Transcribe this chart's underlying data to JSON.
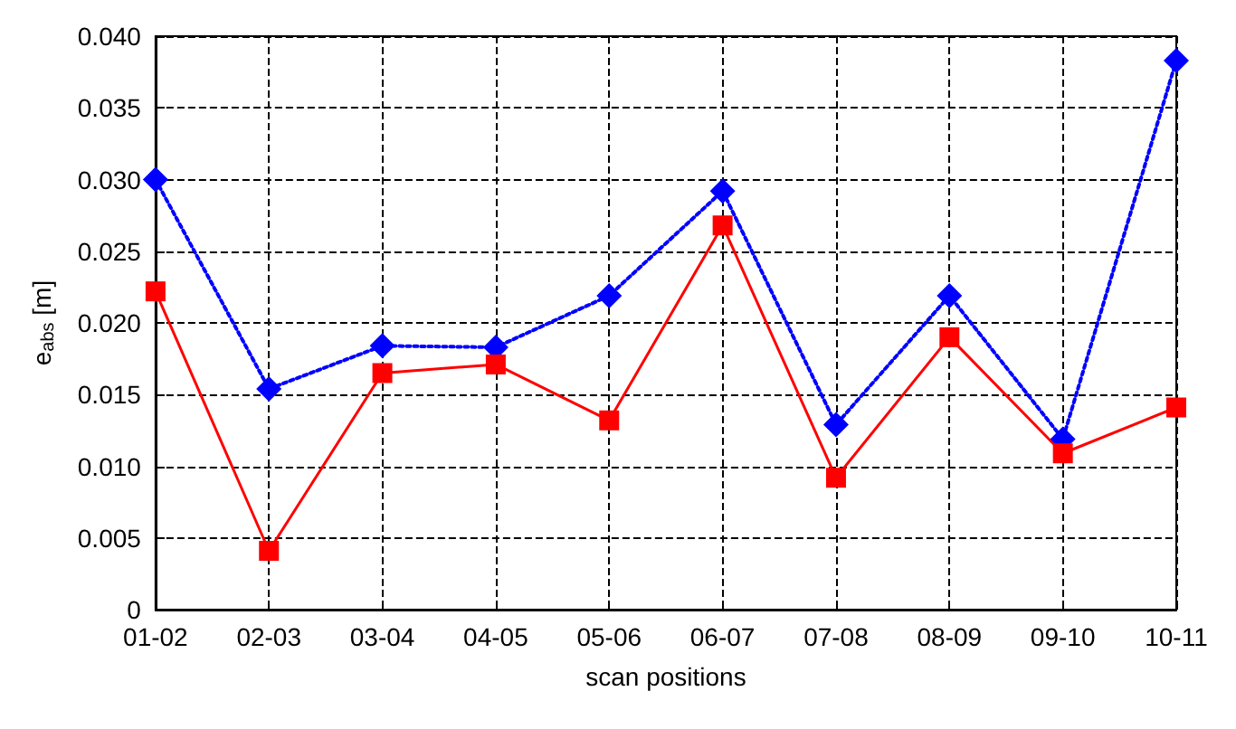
{
  "chart_data": {
    "type": "line",
    "xlabel": "scan positions",
    "ylabel": "e$_{abs}$ [m]",
    "categories": [
      "01-02",
      "02-03",
      "03-04",
      "04-05",
      "05-06",
      "06-07",
      "07-08",
      "08-09",
      "09-10",
      "10-11"
    ],
    "series": [
      {
        "color": "#0000ff",
        "marker": "diamond",
        "line_style": "dotted",
        "values": [
          0.03,
          0.0154,
          0.0184,
          0.0183,
          0.0219,
          0.0292,
          0.0129,
          0.0219,
          0.0119,
          0.0383
        ]
      },
      {
        "color": "#ff0000",
        "marker": "square",
        "line_style": "solid",
        "values": [
          0.0222,
          0.0041,
          0.0165,
          0.0171,
          0.0132,
          0.0268,
          0.0092,
          0.019,
          0.0109,
          0.0141
        ]
      }
    ],
    "ylim": [
      0,
      0.04
    ],
    "yticks": [
      0,
      0.005,
      {
        "value": 0.01,
        "label": "0.010"
      },
      0.015,
      {
        "value": 0.02,
        "label": "0.020"
      },
      0.025,
      {
        "value": 0.03,
        "label": "0.030"
      },
      0.035,
      {
        "value": 0.04,
        "label": "0.040"
      }
    ],
    "grid": true
  }
}
